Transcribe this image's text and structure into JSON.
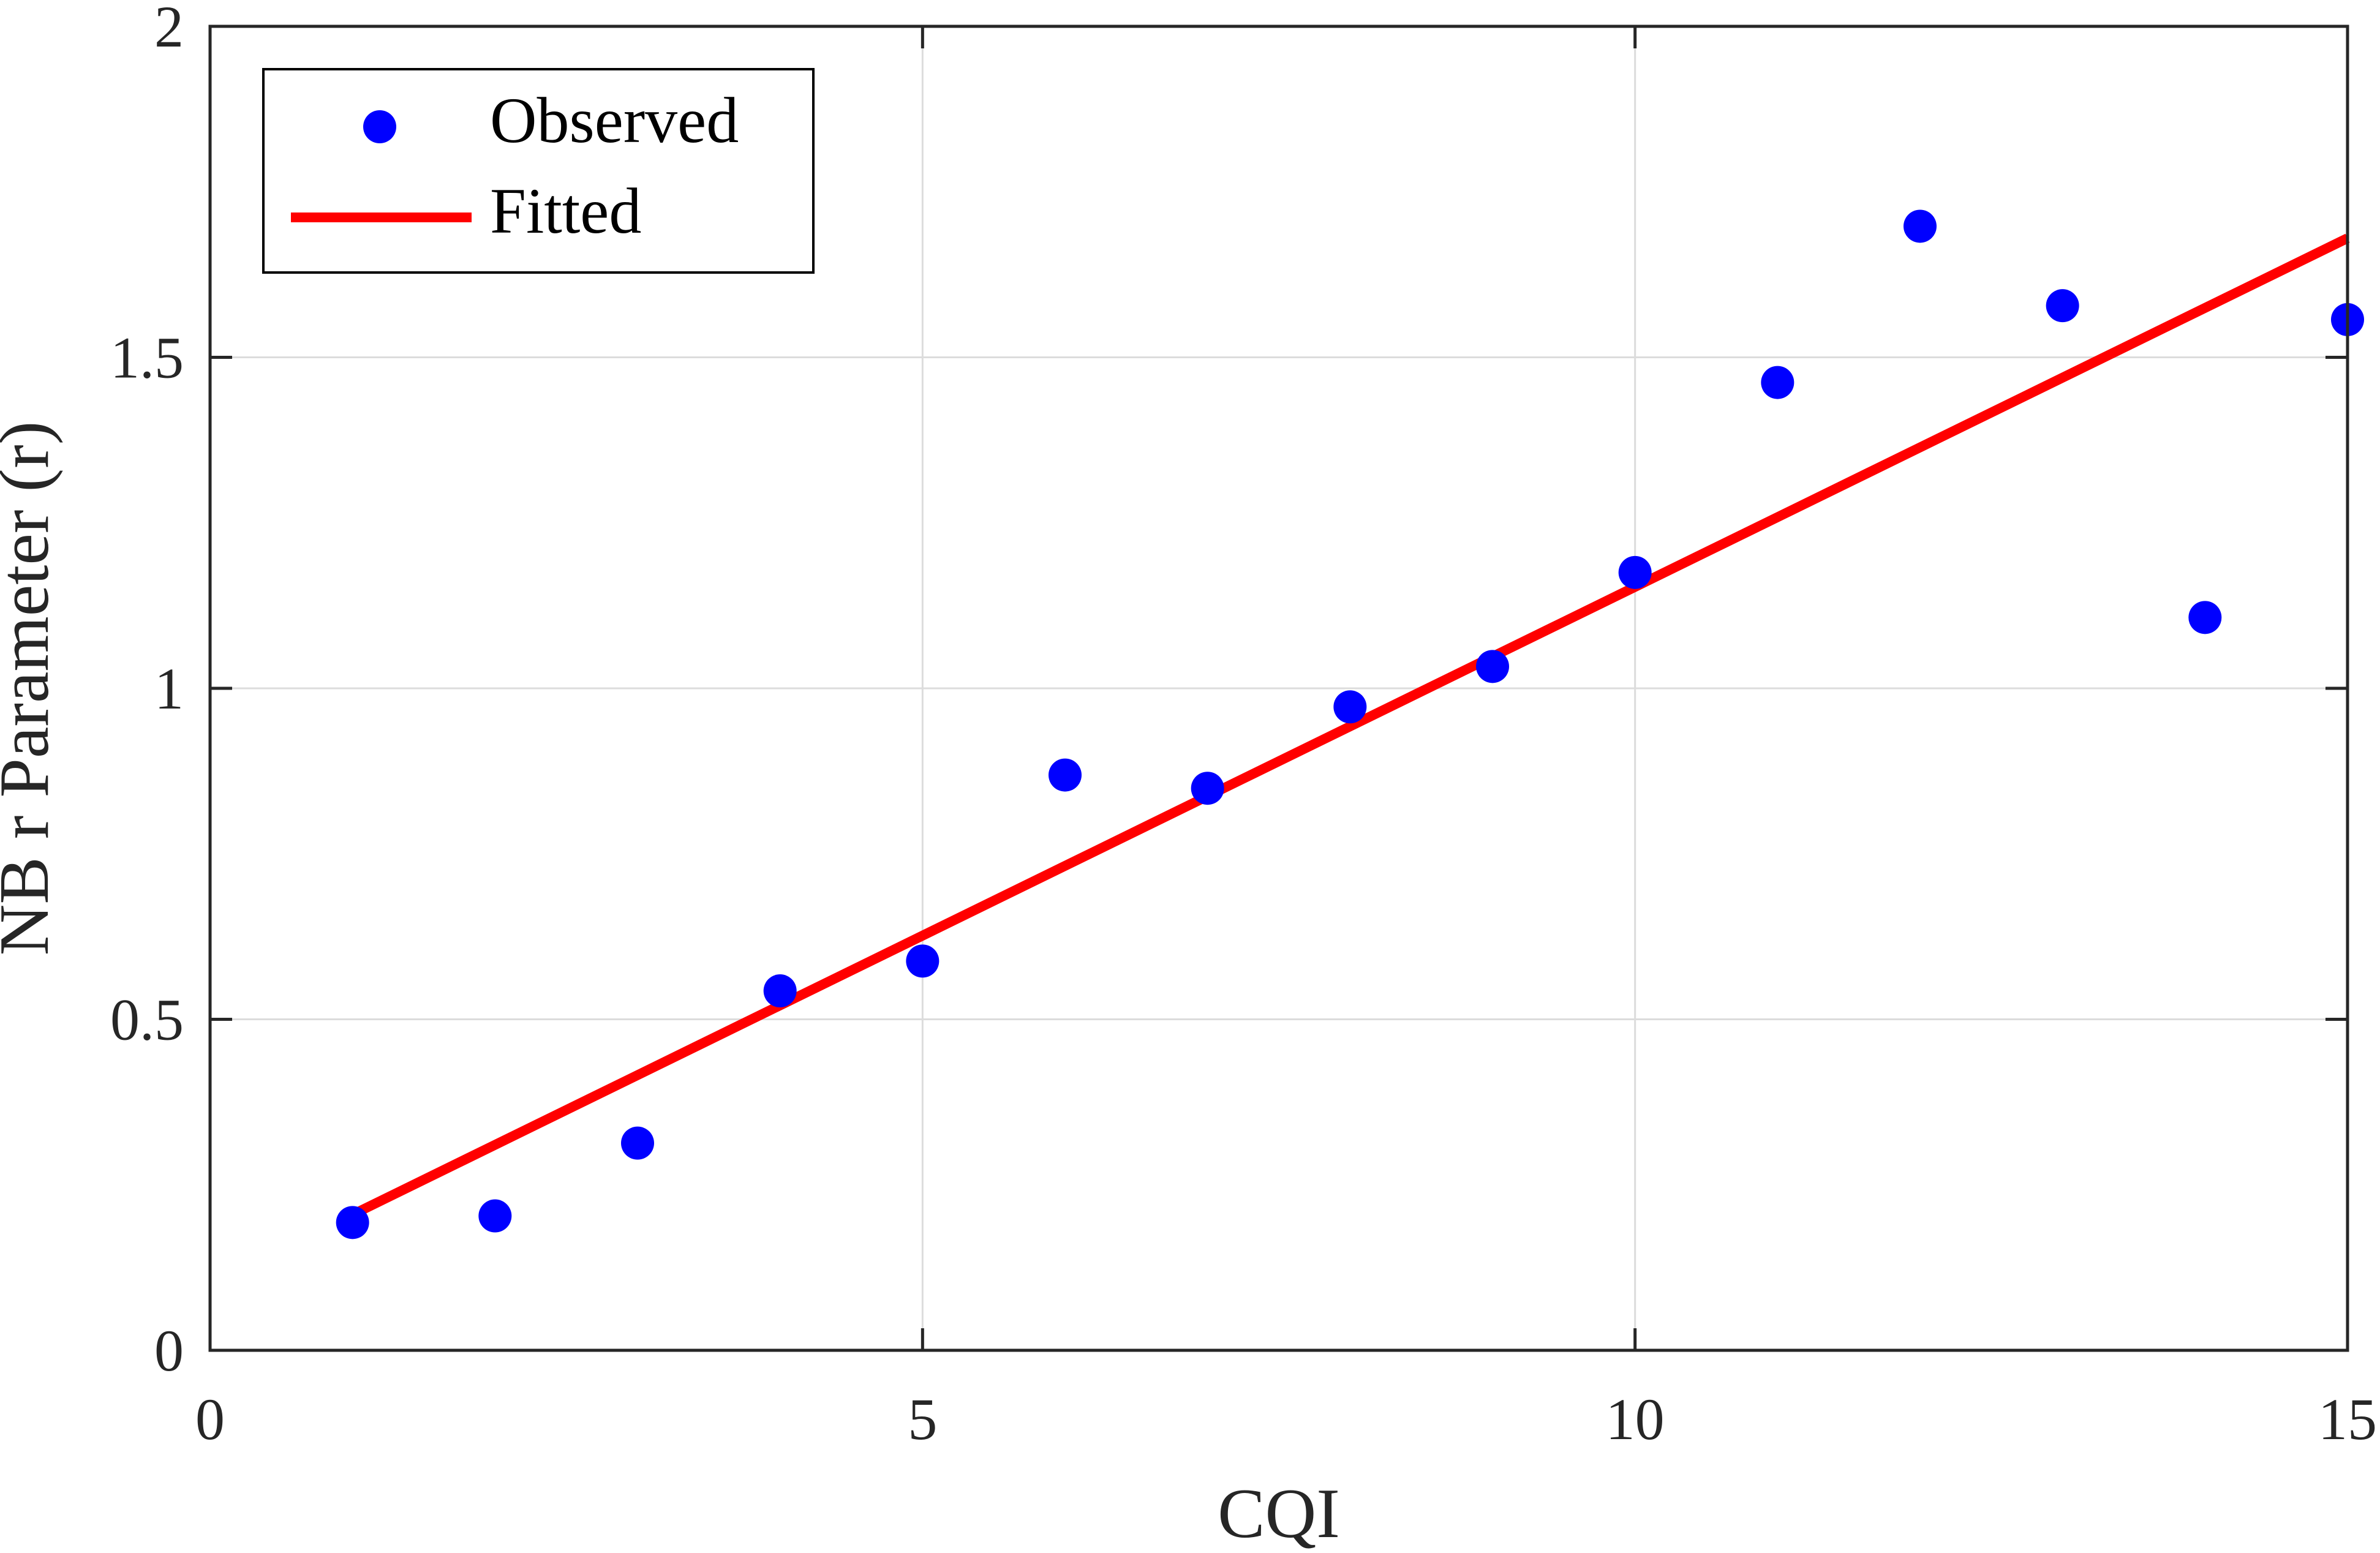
{
  "chart_data": {
    "type": "scatter",
    "xlabel": "CQI",
    "ylabel": "NB r Parameter (r)",
    "xlim": [
      0,
      15
    ],
    "ylim": [
      0,
      2
    ],
    "xticks": [
      "0",
      "5",
      "10",
      "15"
    ],
    "yticks": [
      "0",
      "0.5",
      "1",
      "1.5",
      "2"
    ],
    "grid": true,
    "legend_position": "top-left",
    "series": [
      {
        "name": "Observed",
        "kind": "scatter",
        "color": "#0000ff",
        "x": [
          1,
          2,
          3,
          4,
          5,
          6,
          7,
          8,
          9,
          10,
          11,
          12,
          13,
          14,
          15
        ],
        "y": [
          0.193,
          0.203,
          0.313,
          0.543,
          0.588,
          0.869,
          0.849,
          0.972,
          1.033,
          1.175,
          1.462,
          1.698,
          1.578,
          1.107,
          1.557
        ]
      },
      {
        "name": "Fitted",
        "kind": "line",
        "color": "#ff0000",
        "x": [
          1,
          15
        ],
        "y": [
          0.205,
          1.68
        ]
      }
    ]
  }
}
